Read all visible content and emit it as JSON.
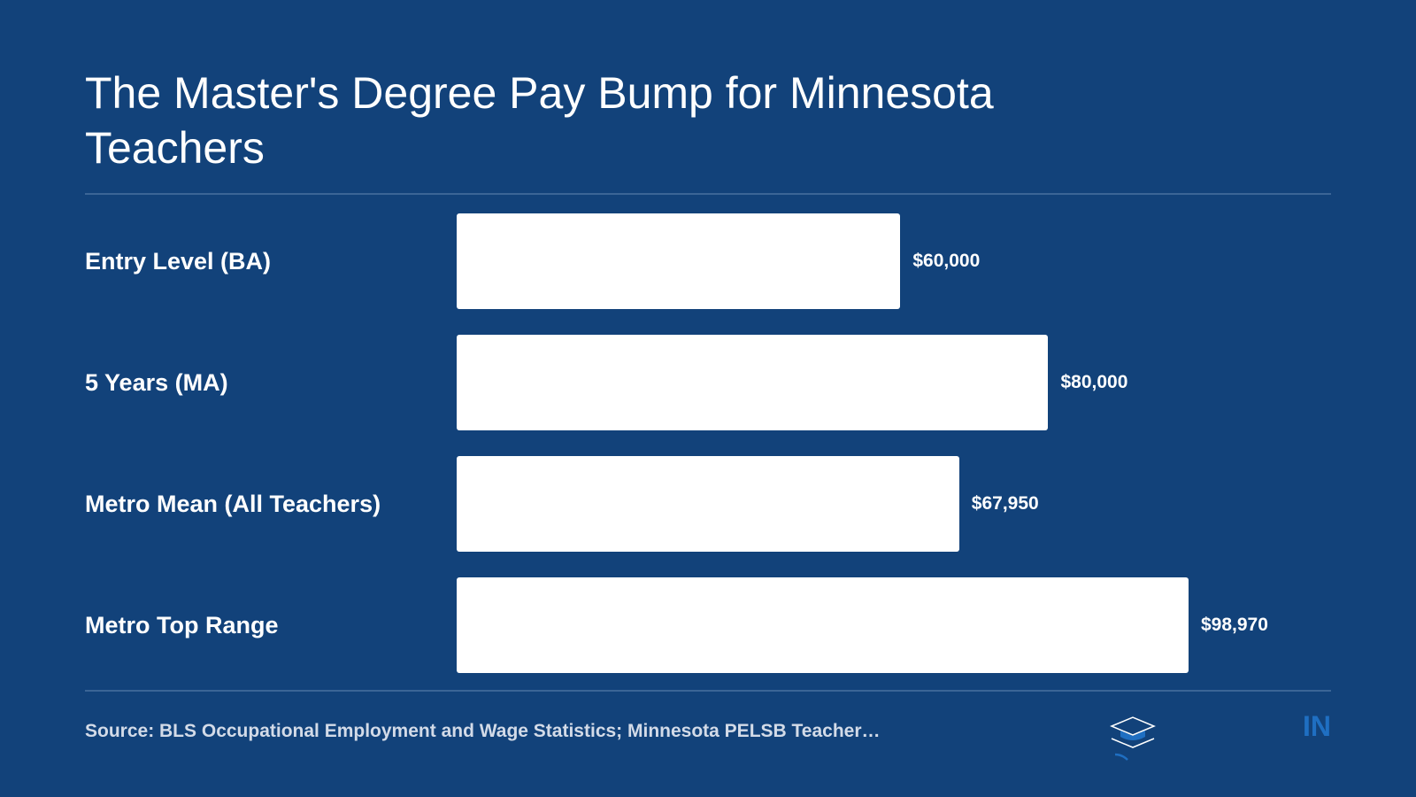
{
  "chart_data": {
    "type": "bar",
    "orientation": "horizontal",
    "title": "The Master's Degree Pay Bump for Minnesota Teachers",
    "categories": [
      "Entry Level (BA)",
      "5 Years (MA)",
      "Metro Mean (All Teachers)",
      "Metro Top Range"
    ],
    "values": [
      60000,
      80000,
      67950,
      98970
    ],
    "value_labels": [
      "$60,000",
      "$80,000",
      "$67,950",
      "$98,970"
    ],
    "color": "#ffffff",
    "source": "Source: BLS Occupational Employment and Wage Statistics; Minnesota PELSB Teacher…",
    "brand": "IN"
  }
}
